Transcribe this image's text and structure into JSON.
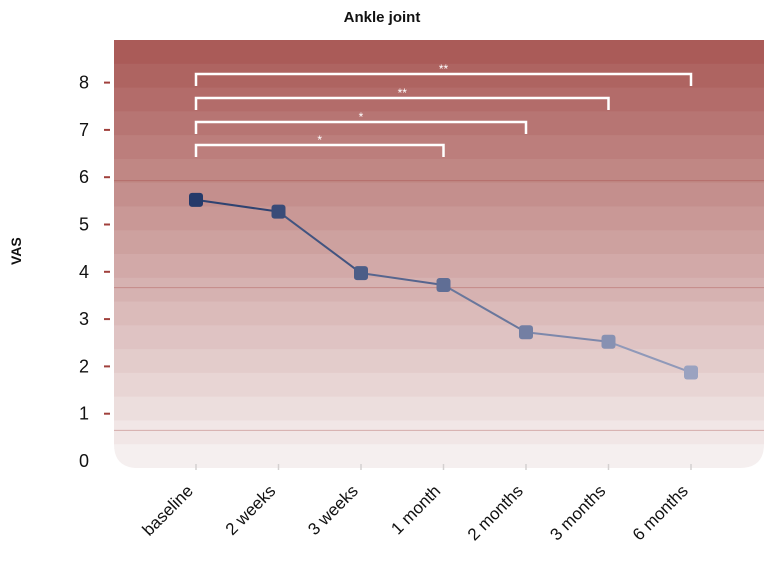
{
  "colors": {
    "band_top": "#aa5b58",
    "band_bottom": "#f5efef",
    "series_dark": "#253a6a",
    "series_light": "#9aa2c0",
    "bracket": "#ffffff",
    "axis_ticks": "#a0403c"
  },
  "chart_data": {
    "type": "line",
    "title": "Ankle joint",
    "xlabel": "",
    "ylabel": "VAS",
    "ylim": [
      0,
      9
    ],
    "yticks": [
      0,
      1,
      2,
      3,
      4,
      5,
      6,
      7,
      8
    ],
    "categories": [
      "baseline",
      "2 weeks",
      "3 weeks",
      "1 month",
      "2 months",
      "3 months",
      "6 months"
    ],
    "series": [
      {
        "values": [
          5.5,
          5.25,
          3.95,
          3.7,
          2.7,
          2.5,
          1.85
        ]
      }
    ],
    "significance": [
      {
        "from": "baseline",
        "to": "1 month",
        "label": "*"
      },
      {
        "from": "baseline",
        "to": "2 months",
        "label": "*"
      },
      {
        "from": "baseline",
        "to": "3 months",
        "label": "**"
      },
      {
        "from": "baseline",
        "to": "6 months",
        "label": "**"
      }
    ],
    "grid": false,
    "legend": "none"
  }
}
